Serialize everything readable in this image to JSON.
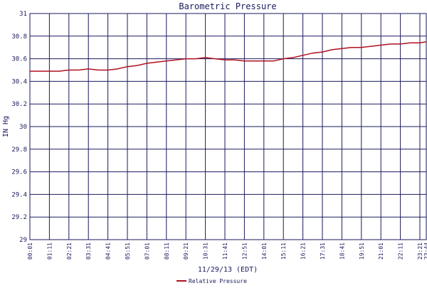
{
  "chart_data": {
    "type": "line",
    "title": "Barometric Pressure",
    "xlabel": "11/29/13 (EDT)",
    "ylabel": "IN Hg",
    "ylim": [
      29,
      31
    ],
    "y_ticks": [
      "31",
      "30.8",
      "30.6",
      "30.4",
      "30.2",
      "30",
      "29.8",
      "29.6",
      "29.4",
      "29.2",
      "29"
    ],
    "x_ticks": [
      "00:01",
      "01:11",
      "02:21",
      "03:31",
      "04:41",
      "05:51",
      "07:01",
      "08:11",
      "09:21",
      "10:31",
      "11:41",
      "12:51",
      "14:01",
      "15:11",
      "16:21",
      "17:31",
      "18:41",
      "19:51",
      "21:01",
      "22:11",
      "23:21",
      "23:44"
    ],
    "grid": true,
    "legend_position": "bottom",
    "series": [
      {
        "name": "Relative Pressure",
        "color": "#b01020",
        "x": [
          "00:01",
          "00:36",
          "01:11",
          "01:46",
          "02:21",
          "02:56",
          "03:31",
          "04:06",
          "04:41",
          "05:16",
          "05:51",
          "06:26",
          "07:01",
          "07:36",
          "08:11",
          "08:46",
          "09:21",
          "09:56",
          "10:31",
          "11:06",
          "11:41",
          "12:16",
          "12:51",
          "13:26",
          "14:01",
          "14:36",
          "15:11",
          "15:46",
          "16:21",
          "16:56",
          "17:31",
          "18:06",
          "18:41",
          "19:16",
          "19:51",
          "20:26",
          "21:01",
          "21:36",
          "22:11",
          "22:46",
          "23:21",
          "23:44"
        ],
        "y": [
          30.49,
          30.49,
          30.49,
          30.49,
          30.5,
          30.5,
          30.51,
          30.5,
          30.5,
          30.51,
          30.53,
          30.54,
          30.56,
          30.57,
          30.58,
          30.59,
          30.6,
          30.6,
          30.61,
          30.6,
          30.59,
          30.59,
          30.58,
          30.58,
          30.58,
          30.58,
          30.6,
          30.61,
          30.63,
          30.65,
          30.66,
          30.68,
          30.69,
          30.7,
          30.7,
          30.71,
          30.72,
          30.73,
          30.73,
          30.74,
          30.74,
          30.75
        ]
      }
    ]
  },
  "colors": {
    "grid": "#1a1a5e",
    "text": "#1a1a5e",
    "background": "#ffffff"
  }
}
